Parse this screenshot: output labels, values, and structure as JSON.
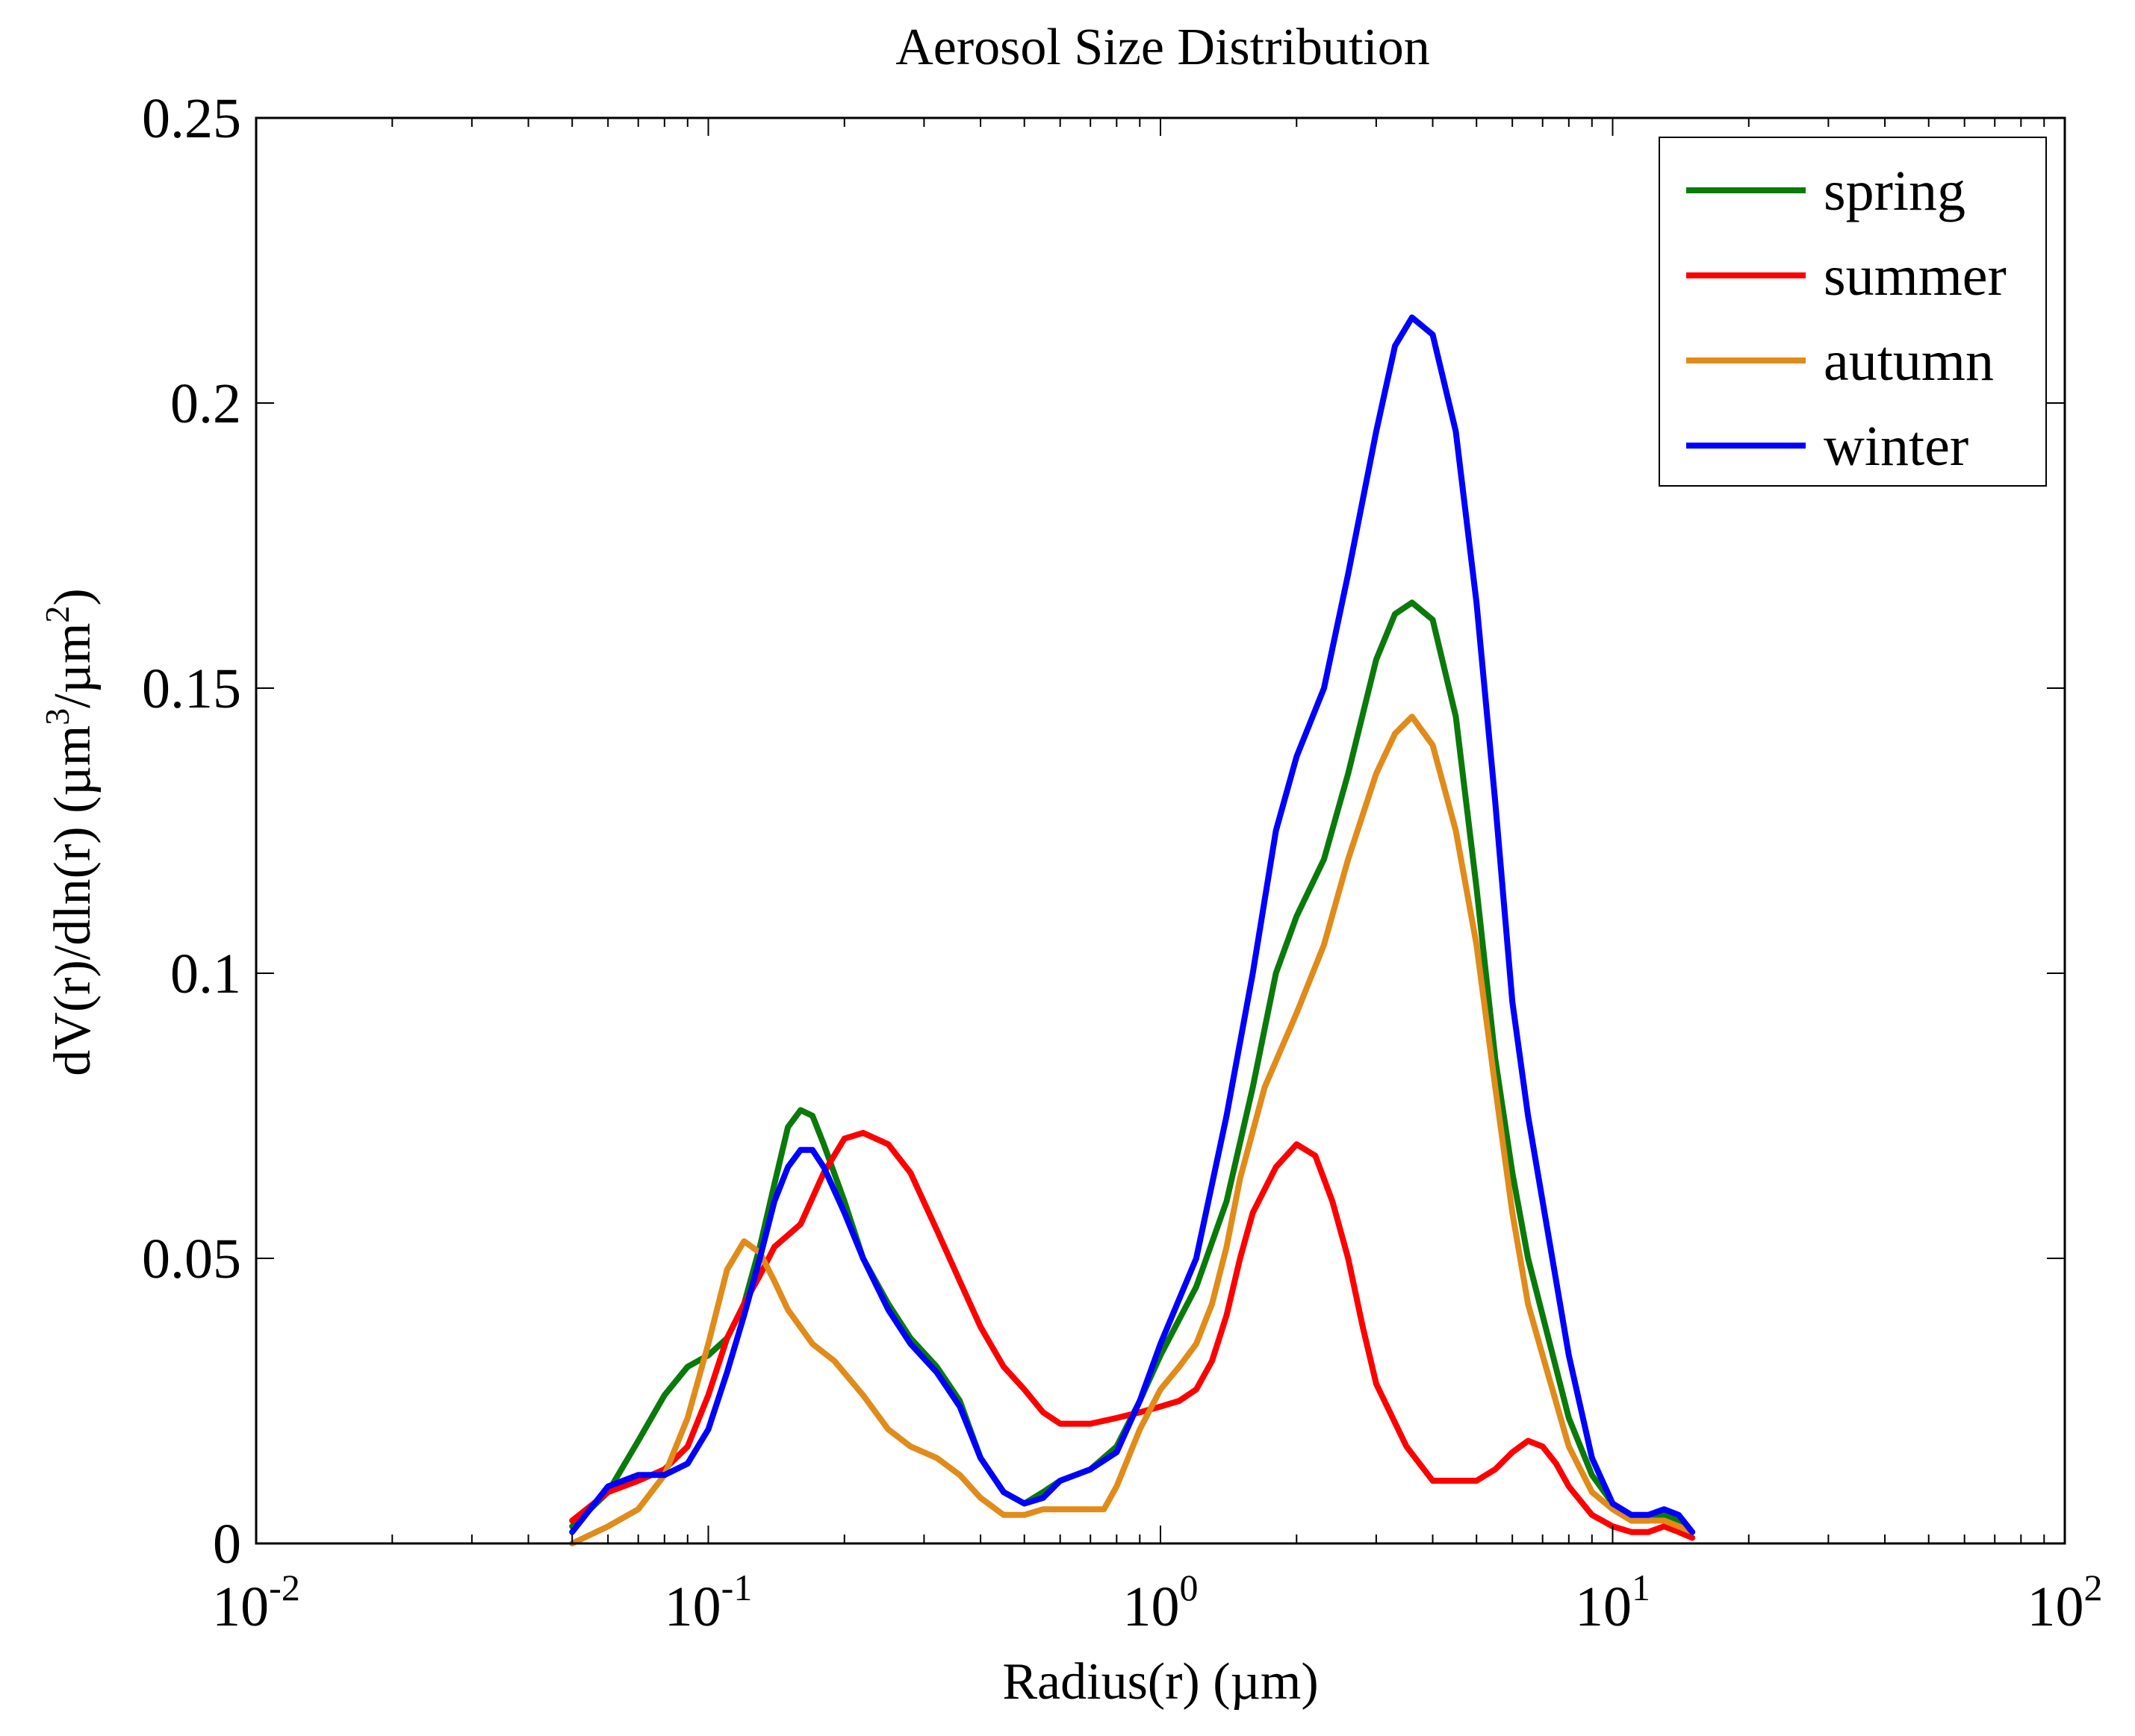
{
  "chart_data": {
    "type": "line",
    "title": "Aerosol Size Distribution",
    "xlabel": "Radius(r) (µm)",
    "ylabel": "dV(r)/dln(r) (µm³/µm²)",
    "ylabel_parts": {
      "prefix": "dV(r)/dln(r) (µm",
      "sup1": "3",
      "mid": "/µm",
      "sup2": "2",
      "suffix": ")"
    },
    "xscale": "log",
    "xlim": [
      0.01,
      100
    ],
    "ylim": [
      0,
      0.25
    ],
    "grid": false,
    "legend_position": "top-right",
    "x_ticks": [
      {
        "value": 0.01,
        "base": "10",
        "exp": "-2"
      },
      {
        "value": 0.1,
        "base": "10",
        "exp": "-1"
      },
      {
        "value": 1,
        "base": "10",
        "exp": "0"
      },
      {
        "value": 10,
        "base": "10",
        "exp": "1"
      },
      {
        "value": 100,
        "base": "10",
        "exp": "2"
      }
    ],
    "y_ticks": [
      {
        "value": 0,
        "label": "0"
      },
      {
        "value": 0.05,
        "label": "0.05"
      },
      {
        "value": 0.1,
        "label": "0.1"
      },
      {
        "value": 0.15,
        "label": "0.15"
      },
      {
        "value": 0.2,
        "label": "0.2"
      },
      {
        "value": 0.25,
        "label": "0.25"
      }
    ],
    "series": [
      {
        "name": "spring",
        "color": "#0a7a0a",
        "points": [
          [
            0.05,
            0.003
          ],
          [
            0.06,
            0.009
          ],
          [
            0.07,
            0.018
          ],
          [
            0.08,
            0.026
          ],
          [
            0.09,
            0.031
          ],
          [
            0.1,
            0.033
          ],
          [
            0.11,
            0.036
          ],
          [
            0.12,
            0.042
          ],
          [
            0.13,
            0.052
          ],
          [
            0.14,
            0.063
          ],
          [
            0.15,
            0.073
          ],
          [
            0.16,
            0.076
          ],
          [
            0.17,
            0.075
          ],
          [
            0.18,
            0.07
          ],
          [
            0.2,
            0.06
          ],
          [
            0.22,
            0.05
          ],
          [
            0.25,
            0.042
          ],
          [
            0.28,
            0.036
          ],
          [
            0.32,
            0.031
          ],
          [
            0.36,
            0.025
          ],
          [
            0.4,
            0.015
          ],
          [
            0.45,
            0.009
          ],
          [
            0.5,
            0.007
          ],
          [
            0.55,
            0.009
          ],
          [
            0.6,
            0.011
          ],
          [
            0.7,
            0.013
          ],
          [
            0.8,
            0.017
          ],
          [
            0.9,
            0.025
          ],
          [
            1.0,
            0.033
          ],
          [
            1.2,
            0.045
          ],
          [
            1.4,
            0.06
          ],
          [
            1.6,
            0.08
          ],
          [
            1.8,
            0.1
          ],
          [
            2.0,
            0.11
          ],
          [
            2.3,
            0.12
          ],
          [
            2.6,
            0.135
          ],
          [
            3.0,
            0.155
          ],
          [
            3.3,
            0.163
          ],
          [
            3.6,
            0.165
          ],
          [
            4.0,
            0.162
          ],
          [
            4.5,
            0.145
          ],
          [
            5.0,
            0.115
          ],
          [
            5.5,
            0.085
          ],
          [
            6.0,
            0.065
          ],
          [
            6.5,
            0.05
          ],
          [
            7.0,
            0.04
          ],
          [
            8.0,
            0.022
          ],
          [
            9.0,
            0.012
          ],
          [
            10.0,
            0.007
          ],
          [
            11.0,
            0.004
          ],
          [
            12.0,
            0.004
          ],
          [
            13.0,
            0.005
          ],
          [
            14.0,
            0.004
          ],
          [
            15.0,
            0.002
          ]
        ]
      },
      {
        "name": "summer",
        "color": "#ff0000",
        "points": [
          [
            0.05,
            0.004
          ],
          [
            0.06,
            0.009
          ],
          [
            0.07,
            0.011
          ],
          [
            0.08,
            0.013
          ],
          [
            0.09,
            0.017
          ],
          [
            0.1,
            0.026
          ],
          [
            0.11,
            0.036
          ],
          [
            0.12,
            0.042
          ],
          [
            0.13,
            0.047
          ],
          [
            0.14,
            0.052
          ],
          [
            0.16,
            0.056
          ],
          [
            0.18,
            0.065
          ],
          [
            0.2,
            0.071
          ],
          [
            0.22,
            0.072
          ],
          [
            0.25,
            0.07
          ],
          [
            0.28,
            0.065
          ],
          [
            0.32,
            0.055
          ],
          [
            0.36,
            0.046
          ],
          [
            0.4,
            0.038
          ],
          [
            0.45,
            0.031
          ],
          [
            0.5,
            0.027
          ],
          [
            0.55,
            0.023
          ],
          [
            0.6,
            0.021
          ],
          [
            0.7,
            0.021
          ],
          [
            0.8,
            0.022
          ],
          [
            0.9,
            0.023
          ],
          [
            1.0,
            0.024
          ],
          [
            1.1,
            0.025
          ],
          [
            1.2,
            0.027
          ],
          [
            1.3,
            0.032
          ],
          [
            1.4,
            0.04
          ],
          [
            1.5,
            0.05
          ],
          [
            1.6,
            0.058
          ],
          [
            1.8,
            0.066
          ],
          [
            2.0,
            0.07
          ],
          [
            2.2,
            0.068
          ],
          [
            2.4,
            0.06
          ],
          [
            2.6,
            0.05
          ],
          [
            2.8,
            0.038
          ],
          [
            3.0,
            0.028
          ],
          [
            3.5,
            0.017
          ],
          [
            4.0,
            0.011
          ],
          [
            4.5,
            0.011
          ],
          [
            5.0,
            0.011
          ],
          [
            5.5,
            0.013
          ],
          [
            6.0,
            0.016
          ],
          [
            6.5,
            0.018
          ],
          [
            7.0,
            0.017
          ],
          [
            7.5,
            0.014
          ],
          [
            8.0,
            0.01
          ],
          [
            9.0,
            0.005
          ],
          [
            10.0,
            0.003
          ],
          [
            11.0,
            0.002
          ],
          [
            12.0,
            0.002
          ],
          [
            13.0,
            0.003
          ],
          [
            14.0,
            0.002
          ],
          [
            15.0,
            0.001
          ]
        ]
      },
      {
        "name": "autumn",
        "color": "#e08b1a",
        "points": [
          [
            0.05,
            0.0
          ],
          [
            0.06,
            0.003
          ],
          [
            0.07,
            0.006
          ],
          [
            0.08,
            0.012
          ],
          [
            0.09,
            0.022
          ],
          [
            0.1,
            0.035
          ],
          [
            0.11,
            0.048
          ],
          [
            0.12,
            0.053
          ],
          [
            0.13,
            0.051
          ],
          [
            0.14,
            0.046
          ],
          [
            0.15,
            0.041
          ],
          [
            0.17,
            0.035
          ],
          [
            0.19,
            0.032
          ],
          [
            0.22,
            0.026
          ],
          [
            0.25,
            0.02
          ],
          [
            0.28,
            0.017
          ],
          [
            0.32,
            0.015
          ],
          [
            0.36,
            0.012
          ],
          [
            0.4,
            0.008
          ],
          [
            0.45,
            0.005
          ],
          [
            0.5,
            0.005
          ],
          [
            0.55,
            0.006
          ],
          [
            0.6,
            0.006
          ],
          [
            0.7,
            0.006
          ],
          [
            0.75,
            0.006
          ],
          [
            0.8,
            0.01
          ],
          [
            0.9,
            0.02
          ],
          [
            1.0,
            0.027
          ],
          [
            1.1,
            0.031
          ],
          [
            1.2,
            0.035
          ],
          [
            1.3,
            0.042
          ],
          [
            1.4,
            0.052
          ],
          [
            1.5,
            0.064
          ],
          [
            1.7,
            0.08
          ],
          [
            2.0,
            0.093
          ],
          [
            2.3,
            0.105
          ],
          [
            2.6,
            0.12
          ],
          [
            3.0,
            0.135
          ],
          [
            3.3,
            0.142
          ],
          [
            3.6,
            0.145
          ],
          [
            4.0,
            0.14
          ],
          [
            4.5,
            0.125
          ],
          [
            5.0,
            0.105
          ],
          [
            5.5,
            0.08
          ],
          [
            6.0,
            0.058
          ],
          [
            6.5,
            0.042
          ],
          [
            7.0,
            0.033
          ],
          [
            8.0,
            0.017
          ],
          [
            9.0,
            0.009
          ],
          [
            10.0,
            0.006
          ],
          [
            11.0,
            0.004
          ],
          [
            12.0,
            0.004
          ],
          [
            13.0,
            0.004
          ],
          [
            14.0,
            0.003
          ],
          [
            15.0,
            0.002
          ]
        ]
      },
      {
        "name": "winter",
        "color": "#0000ff",
        "points": [
          [
            0.05,
            0.002
          ],
          [
            0.06,
            0.01
          ],
          [
            0.07,
            0.012
          ],
          [
            0.08,
            0.012
          ],
          [
            0.09,
            0.014
          ],
          [
            0.1,
            0.02
          ],
          [
            0.11,
            0.03
          ],
          [
            0.12,
            0.04
          ],
          [
            0.13,
            0.05
          ],
          [
            0.14,
            0.06
          ],
          [
            0.15,
            0.066
          ],
          [
            0.16,
            0.069
          ],
          [
            0.17,
            0.069
          ],
          [
            0.18,
            0.066
          ],
          [
            0.2,
            0.058
          ],
          [
            0.22,
            0.05
          ],
          [
            0.25,
            0.041
          ],
          [
            0.28,
            0.035
          ],
          [
            0.32,
            0.03
          ],
          [
            0.36,
            0.024
          ],
          [
            0.4,
            0.015
          ],
          [
            0.45,
            0.009
          ],
          [
            0.5,
            0.007
          ],
          [
            0.55,
            0.008
          ],
          [
            0.6,
            0.011
          ],
          [
            0.7,
            0.013
          ],
          [
            0.8,
            0.016
          ],
          [
            0.9,
            0.025
          ],
          [
            1.0,
            0.035
          ],
          [
            1.2,
            0.05
          ],
          [
            1.4,
            0.075
          ],
          [
            1.6,
            0.1
          ],
          [
            1.8,
            0.125
          ],
          [
            2.0,
            0.138
          ],
          [
            2.3,
            0.15
          ],
          [
            2.6,
            0.17
          ],
          [
            3.0,
            0.195
          ],
          [
            3.3,
            0.21
          ],
          [
            3.6,
            0.215
          ],
          [
            4.0,
            0.212
          ],
          [
            4.5,
            0.195
          ],
          [
            5.0,
            0.165
          ],
          [
            5.5,
            0.13
          ],
          [
            6.0,
            0.095
          ],
          [
            6.5,
            0.075
          ],
          [
            7.0,
            0.06
          ],
          [
            8.0,
            0.033
          ],
          [
            9.0,
            0.015
          ],
          [
            10.0,
            0.007
          ],
          [
            11.0,
            0.005
          ],
          [
            12.0,
            0.005
          ],
          [
            13.0,
            0.006
          ],
          [
            14.0,
            0.005
          ],
          [
            15.0,
            0.002
          ]
        ]
      }
    ]
  }
}
